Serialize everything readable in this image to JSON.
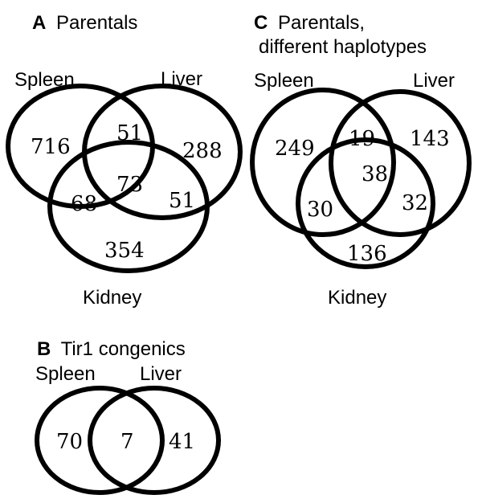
{
  "panel_a": {
    "letter": "A",
    "title": "Parentals",
    "sets": {
      "spleen": "Spleen",
      "liver": "Liver",
      "kidney": "Kidney"
    },
    "counts": {
      "spleen_only": "716",
      "liver_only": "288",
      "kidney_only": "354",
      "spleen_liver": "51",
      "spleen_kidney": "68",
      "liver_kidney": "51",
      "all_three": "73"
    }
  },
  "panel_b": {
    "letter": "B",
    "title": "Tir1 congenics",
    "sets": {
      "spleen": "Spleen",
      "liver": "Liver"
    },
    "counts": {
      "spleen_only": "70",
      "spleen_liver": "7",
      "liver_only": "41"
    }
  },
  "panel_c": {
    "letter": "C",
    "title_line1": "Parentals,",
    "title_line2": "different haplotypes",
    "sets": {
      "spleen": "Spleen",
      "liver": "Liver",
      "kidney": "Kidney"
    },
    "counts": {
      "spleen_only": "249",
      "liver_only": "143",
      "kidney_only": "136",
      "spleen_liver": "19",
      "spleen_kidney": "30",
      "liver_kidney": "32",
      "all_three": "38"
    }
  }
}
